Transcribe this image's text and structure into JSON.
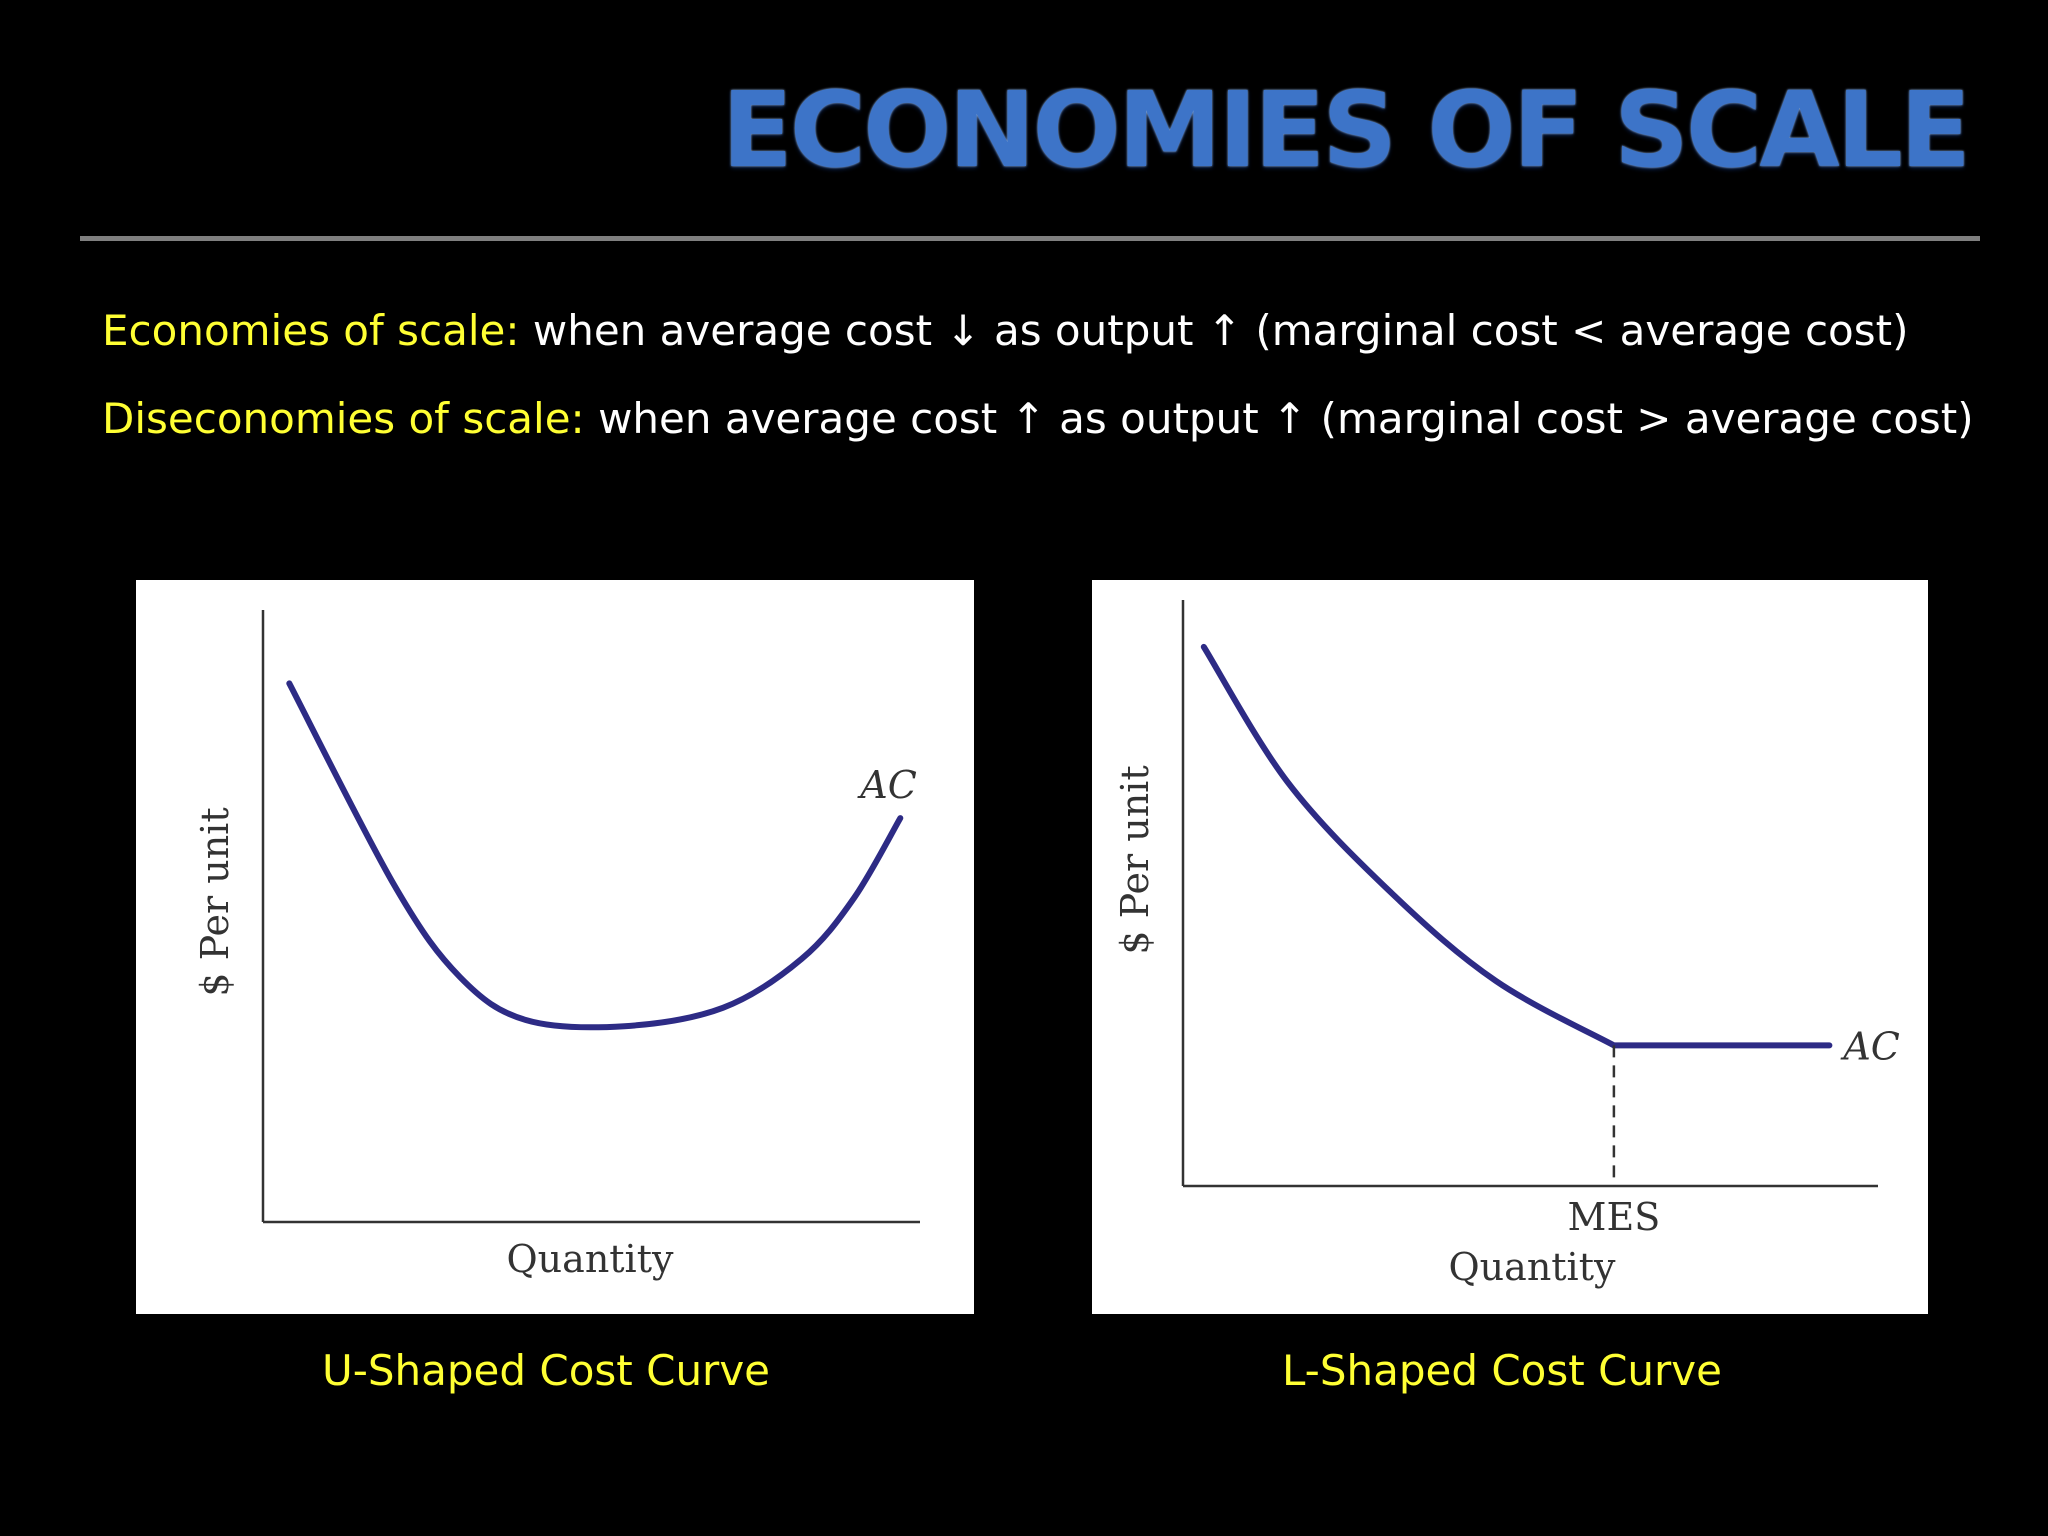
{
  "slide": {
    "title": "ECONOMIES OF SCALE",
    "definitions": [
      {
        "term": "Economies of scale:",
        "text": "when average cost ↓ as output ↑ (marginal cost < average cost)"
      },
      {
        "term": "Diseconomies of scale:",
        "text": "when average cost ↑ as output ↑ (marginal cost > average cost)"
      }
    ]
  },
  "colors": {
    "title": "#3d74c8",
    "term": "#ffff33",
    "curve": "#2d2b85",
    "background": "#000000"
  },
  "chart_data": [
    {
      "type": "line",
      "caption": "U-Shaped Cost Curve",
      "xlabel": "Quantity",
      "ylabel": "$ Per unit",
      "series": [
        {
          "name": "AC",
          "x": [
            0.04,
            0.2,
            0.3,
            0.4,
            0.55,
            0.7,
            0.82,
            0.9,
            0.97
          ],
          "y": [
            0.88,
            0.55,
            0.4,
            0.33,
            0.32,
            0.35,
            0.43,
            0.53,
            0.66
          ]
        }
      ],
      "xlim": [
        0,
        1
      ],
      "ylim": [
        0,
        1
      ],
      "grid": false
    },
    {
      "type": "line",
      "caption": "L-Shaped Cost Curve",
      "xlabel": "Quantity",
      "ylabel": "$ Per unit",
      "series": [
        {
          "name": "AC",
          "x": [
            0.03,
            0.15,
            0.3,
            0.45,
            0.62,
            0.8,
            0.93
          ],
          "y": [
            0.92,
            0.69,
            0.5,
            0.35,
            0.24,
            0.24,
            0.24
          ]
        }
      ],
      "annotations": [
        {
          "label": "MES",
          "x": 0.62
        }
      ],
      "xlim": [
        0,
        1
      ],
      "ylim": [
        0,
        1
      ],
      "grid": false
    }
  ]
}
